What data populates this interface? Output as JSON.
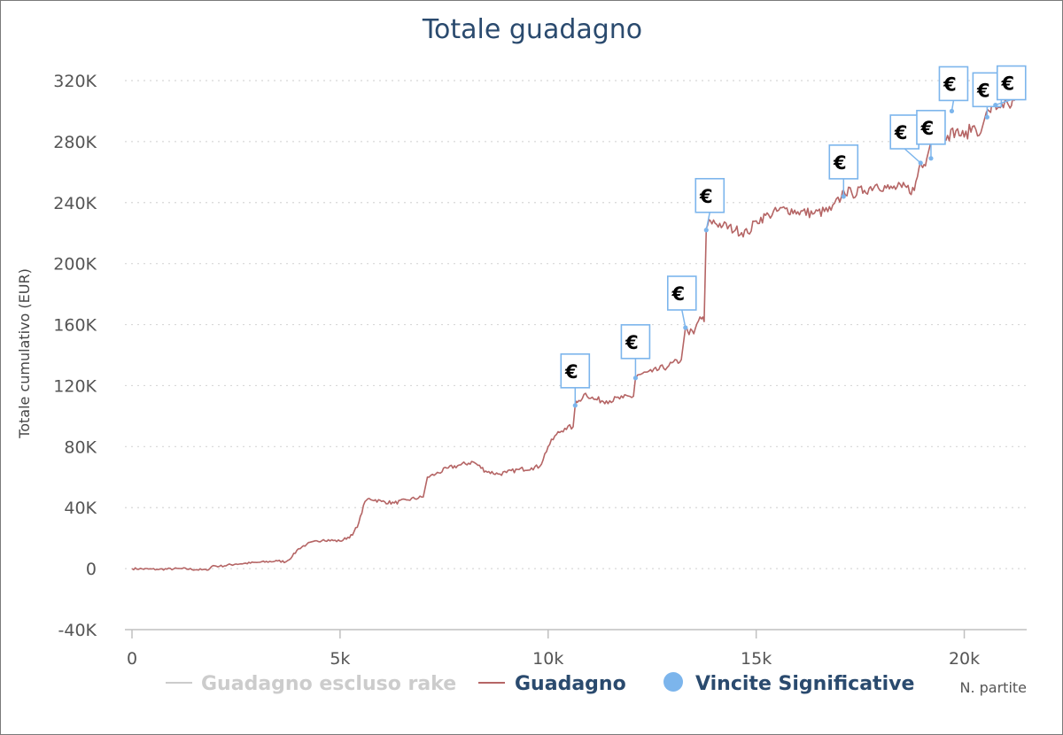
{
  "chart_data": {
    "type": "line",
    "title": "Totale guadagno",
    "ylabel": "Totale cumulativo (EUR)",
    "xlabel": "N. partite",
    "xlim": [
      0,
      21500
    ],
    "ylim": [
      -40000,
      320000
    ],
    "x_ticks": [
      0,
      5000,
      10000,
      15000,
      20000
    ],
    "x_tick_labels": [
      "0",
      "5k",
      "10k",
      "15k",
      "20k"
    ],
    "y_ticks": [
      -40000,
      0,
      40000,
      80000,
      120000,
      160000,
      200000,
      240000,
      280000,
      320000
    ],
    "y_tick_labels": [
      "-40K",
      "0",
      "40K",
      "80K",
      "120K",
      "160K",
      "200K",
      "240K",
      "280K",
      "320K"
    ],
    "grid": true,
    "legend_placement": "bottom",
    "colors": {
      "guadagno": "#b56565",
      "escluso": "#cccccc",
      "vincite": "#7cb5ec",
      "title": "#2a4a6e"
    },
    "series": [
      {
        "name": "Guadagno escluso rake",
        "hidden": true,
        "values": []
      },
      {
        "name": "Guadagno",
        "x": [
          0,
          600,
          1200,
          1800,
          1950,
          2100,
          2500,
          3000,
          3500,
          3700,
          3850,
          4000,
          4200,
          4600,
          5000,
          5300,
          5450,
          5600,
          5700,
          6000,
          6300,
          6600,
          7000,
          7100,
          7300,
          7600,
          7900,
          8200,
          8500,
          8800,
          9000,
          9300,
          9600,
          9800,
          10000,
          10200,
          10400,
          10600,
          10650,
          10700,
          10900,
          11100,
          11400,
          11800,
          12050,
          12100,
          12150,
          12500,
          12900,
          13200,
          13300,
          13350,
          13500,
          13650,
          13750,
          13800,
          13900,
          14200,
          14500,
          14800,
          15000,
          15300,
          15700,
          16000,
          16400,
          16800,
          17050,
          17100,
          17300,
          17600,
          17900,
          18200,
          18500,
          18800,
          18950,
          19000,
          19100,
          19200,
          19250,
          19400,
          19600,
          19800,
          20000,
          20200,
          20400,
          20500,
          20600,
          20700,
          20800,
          20900,
          21100,
          21200,
          21300
        ],
        "values": [
          0,
          -500,
          0,
          -1000,
          2000,
          1500,
          3000,
          4000,
          5000,
          4500,
          8000,
          13000,
          16000,
          19000,
          18000,
          22000,
          30000,
          44000,
          46000,
          44000,
          43000,
          45000,
          47000,
          60000,
          62000,
          66000,
          68000,
          70000,
          64000,
          62000,
          63000,
          65000,
          66000,
          67000,
          80000,
          88000,
          92000,
          93000,
          107000,
          109000,
          115000,
          111000,
          110000,
          112000,
          113000,
          125000,
          127000,
          129000,
          133000,
          137000,
          158000,
          156000,
          154000,
          165000,
          162000,
          223000,
          228000,
          225000,
          222000,
          220000,
          228000,
          232000,
          236000,
          234000,
          233000,
          235000,
          244000,
          248000,
          246000,
          248000,
          252000,
          249000,
          250000,
          248000,
          267000,
          263000,
          269000,
          280000,
          288000,
          287000,
          284000,
          287000,
          283000,
          290000,
          286000,
          296000,
          300000,
          304000,
          302000,
          305000,
          302000,
          307000,
          312000
        ]
      },
      {
        "name": "Vincite Significative",
        "x": [
          10650,
          12100,
          13300,
          13800,
          17100,
          18950,
          19200,
          19700,
          20550,
          20750
        ],
        "values": [
          107000,
          125000,
          158000,
          222000,
          244000,
          266000,
          269000,
          300000,
          296000,
          304000
        ],
        "flag_label": "€"
      }
    ]
  }
}
